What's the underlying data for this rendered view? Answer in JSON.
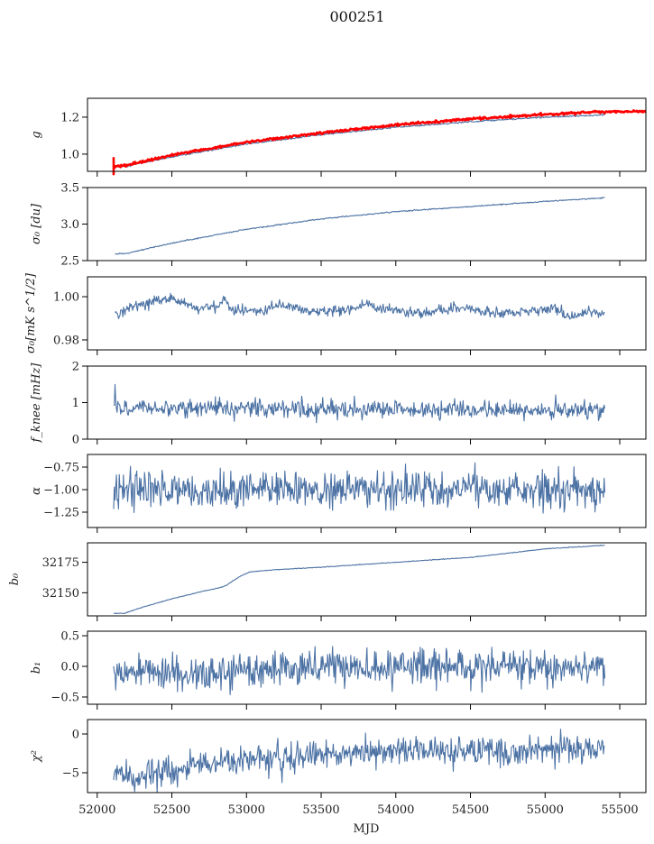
{
  "chart_data": {
    "type": "line",
    "title": "000251",
    "xlabel": "MJD",
    "xlim": [
      51935,
      55675
    ],
    "xticks": [
      52000,
      52500,
      53000,
      53500,
      54000,
      54500,
      55000,
      55500
    ],
    "x_range_of_data": [
      52110,
      55400
    ],
    "series_color": "#4c72a4",
    "model_color": "#ff0000",
    "panels": [
      {
        "id": "g",
        "ylabel": "g",
        "ylim": [
          0.907,
          1.302
        ],
        "yticks": [
          1.0,
          1.2
        ],
        "ytick_labels": [
          "1.0",
          "1.2"
        ],
        "shape": "trend",
        "series": [
          {
            "name": "g measured",
            "color": "#4c72a4",
            "anchors": [
              [
                52110,
                0.93
              ],
              [
                52200,
                0.935
              ],
              [
                52500,
                0.985
              ],
              [
                53000,
                1.055
              ],
              [
                53500,
                1.105
              ],
              [
                54000,
                1.145
              ],
              [
                54500,
                1.175
              ],
              [
                55000,
                1.2
              ],
              [
                55400,
                1.212
              ]
            ],
            "noise": 0.002,
            "seed": 11
          },
          {
            "name": "g model",
            "color": "#ff0000",
            "anchors": [
              [
                52110,
                0.935
              ],
              [
                52200,
                0.94
              ],
              [
                52500,
                0.995
              ],
              [
                53000,
                1.065
              ],
              [
                53500,
                1.115
              ],
              [
                54000,
                1.158
              ],
              [
                54500,
                1.19
              ],
              [
                55000,
                1.215
              ],
              [
                55400,
                1.23
              ],
              [
                55680,
                1.232
              ]
            ],
            "noise": 0.003,
            "seed": 12,
            "thick": true
          }
        ]
      },
      {
        "id": "sigma0_du",
        "ylabel": "σ₀ [du]",
        "ylim": [
          2.5,
          3.5
        ],
        "yticks": [
          2.5,
          3.0,
          3.5
        ],
        "ytick_labels": [
          "2.5",
          "3.0",
          "3.5"
        ],
        "series": [
          {
            "name": "sigma0 du",
            "color": "#4c72a4",
            "anchors": [
              [
                52120,
                2.59
              ],
              [
                52200,
                2.6
              ],
              [
                52500,
                2.74
              ],
              [
                53000,
                2.93
              ],
              [
                53500,
                3.07
              ],
              [
                54000,
                3.17
              ],
              [
                54500,
                3.24
              ],
              [
                55000,
                3.31
              ],
              [
                55400,
                3.36
              ]
            ],
            "noise": 0.004,
            "seed": 21
          }
        ]
      },
      {
        "id": "sigma0_mk",
        "ylabel": "σ₀[mK s^1/2]",
        "ylim": [
          0.9754,
          1.0092
        ],
        "yticks": [
          0.98,
          1.0
        ],
        "ytick_labels": [
          "0.98",
          "1.00"
        ],
        "series": [
          {
            "name": "sigma0 mK",
            "color": "#4c72a4",
            "anchors": [
              [
                52120,
                0.992
              ],
              [
                52200,
                0.995
              ],
              [
                52400,
                0.998
              ],
              [
                52500,
                0.999
              ],
              [
                52600,
                0.997
              ],
              [
                52650,
                0.994
              ],
              [
                52800,
                0.996
              ],
              [
                52860,
                0.999
              ],
              [
                52900,
                0.994
              ],
              [
                53100,
                0.993
              ],
              [
                53200,
                0.996
              ],
              [
                53300,
                0.996
              ],
              [
                53420,
                0.993
              ],
              [
                53600,
                0.993
              ],
              [
                53800,
                0.996
              ],
              [
                54000,
                0.994
              ],
              [
                54180,
                0.992
              ],
              [
                54400,
                0.995
              ],
              [
                54600,
                0.993
              ],
              [
                54800,
                0.992
              ],
              [
                54950,
                0.994
              ],
              [
                55050,
                0.995
              ],
              [
                55150,
                0.99
              ],
              [
                55300,
                0.994
              ],
              [
                55400,
                0.991
              ]
            ],
            "noise": 0.0012,
            "seed": 31
          }
        ]
      },
      {
        "id": "fknee",
        "ylabel": "f_knee [mHz]",
        "ylim": [
          0,
          2
        ],
        "yticks": [
          0,
          1,
          2
        ],
        "ytick_labels": [
          "0",
          "1",
          "2"
        ],
        "series": [
          {
            "name": "fknee",
            "color": "#4c72a4",
            "anchors": [
              [
                52110,
                0.85
              ],
              [
                55400,
                0.78
              ]
            ],
            "noise": 0.12,
            "seed": 41,
            "spike": [
              52125,
              1.5
            ]
          }
        ]
      },
      {
        "id": "alpha",
        "ylabel": "α",
        "ylim": [
          -1.42,
          -0.61
        ],
        "yticks": [
          -1.25,
          -1.0,
          -0.75
        ],
        "ytick_labels": [
          "−1.25",
          "−1.00",
          "−0.75"
        ],
        "series": [
          {
            "name": "alpha",
            "color": "#4c72a4",
            "anchors": [
              [
                52110,
                -1.0
              ],
              [
                55400,
                -1.0
              ]
            ],
            "noise": 0.1,
            "seed": 51
          }
        ]
      },
      {
        "id": "b0",
        "ylabel": "b₀",
        "ylim": [
          32131,
          32191
        ],
        "yticks": [
          32150,
          32175
        ],
        "ytick_labels": [
          "32150",
          "32175"
        ],
        "series": [
          {
            "name": "b0",
            "color": "#4c72a4",
            "anchors": [
              [
                52110,
                32133
              ],
              [
                52180,
                32133
              ],
              [
                52300,
                32138
              ],
              [
                52500,
                32145
              ],
              [
                52700,
                32151
              ],
              [
                52850,
                32155
              ],
              [
                52950,
                32163
              ],
              [
                53020,
                32167
              ],
              [
                53200,
                32169
              ],
              [
                53500,
                32171
              ],
              [
                54000,
                32175
              ],
              [
                54500,
                32179
              ],
              [
                55000,
                32186
              ],
              [
                55400,
                32189
              ]
            ],
            "noise": 0.15,
            "seed": 61
          }
        ]
      },
      {
        "id": "b1",
        "ylabel": "b₁",
        "ylim": [
          -0.618,
          0.574
        ],
        "yticks": [
          -0.5,
          0.0,
          0.5
        ],
        "ytick_labels": [
          "−0.5",
          "0.0",
          "0.5"
        ],
        "series": [
          {
            "name": "b1",
            "color": "#4c72a4",
            "anchors": [
              [
                52110,
                -0.08
              ],
              [
                52800,
                -0.12
              ],
              [
                53000,
                -0.02
              ],
              [
                55400,
                0.0
              ]
            ],
            "noise": 0.14,
            "seed": 71
          }
        ]
      },
      {
        "id": "chi2",
        "ylabel": "χ²",
        "ylim": [
          -7.56,
          1.86
        ],
        "yticks": [
          -5,
          0
        ],
        "ytick_labels": [
          "−5",
          "0"
        ],
        "series": [
          {
            "name": "chi2",
            "color": "#4c72a4",
            "anchors": [
              [
                52110,
                -4.5
              ],
              [
                52250,
                -5.8
              ],
              [
                52600,
                -4.2
              ],
              [
                53000,
                -3.3
              ],
              [
                53500,
                -2.7
              ],
              [
                54000,
                -2.1
              ],
              [
                54500,
                -2.2
              ],
              [
                55000,
                -1.9
              ],
              [
                55400,
                -1.6
              ]
            ],
            "noise": 0.9,
            "seed": 81
          }
        ]
      }
    ]
  }
}
